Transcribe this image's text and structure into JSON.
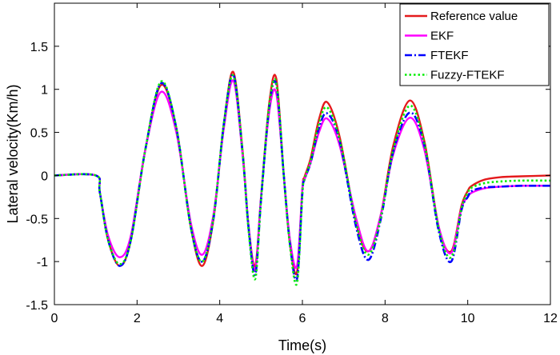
{
  "chart_data": {
    "type": "line",
    "title": "",
    "xlabel": "Time(s)",
    "ylabel": "Lateral velocity(Km/h)",
    "xlim": [
      0,
      12
    ],
    "ylim": [
      -1.5,
      2
    ],
    "xticks": [
      0,
      2,
      4,
      6,
      8,
      10,
      12
    ],
    "yticks": [
      -1.5,
      -1,
      -0.5,
      0,
      0.5,
      1,
      1.5
    ],
    "xtick_labels": [
      "0",
      "2",
      "4",
      "6",
      "8",
      "10",
      "12"
    ],
    "ytick_labels": [
      "-1.5",
      "-1",
      "-0.5",
      "0",
      "0.5",
      "1",
      "1.5"
    ],
    "grid": false,
    "legend_position": "top-right",
    "series": [
      {
        "name": "Reference value",
        "color": "#e41a1c",
        "style": "solid",
        "x": [
          0,
          1.0,
          1.1,
          1.3,
          1.58,
          1.85,
          2.2,
          2.58,
          2.95,
          3.3,
          3.58,
          3.85,
          4.1,
          4.33,
          4.55,
          4.7,
          4.86,
          5.0,
          5.2,
          5.37,
          5.55,
          5.7,
          5.87,
          6.0,
          6.05,
          6.2,
          6.4,
          6.6,
          6.9,
          7.3,
          7.6,
          7.9,
          8.2,
          8.6,
          8.95,
          9.3,
          9.6,
          9.85,
          10.0,
          10.1,
          10.4,
          10.8,
          11.3,
          12.0
        ],
        "y": [
          0,
          0,
          -0.2,
          -0.75,
          -1.05,
          -0.75,
          0.3,
          1.05,
          0.55,
          -0.6,
          -1.05,
          -0.5,
          0.6,
          1.2,
          0.3,
          -0.6,
          -1.05,
          -0.25,
          0.85,
          1.12,
          0.0,
          -0.8,
          -1.12,
          -0.15,
          -0.02,
          0.2,
          0.65,
          0.85,
          0.45,
          -0.55,
          -0.88,
          -0.45,
          0.35,
          0.87,
          0.4,
          -0.6,
          -0.88,
          -0.35,
          -0.18,
          -0.12,
          -0.05,
          -0.02,
          -0.01,
          0.0
        ]
      },
      {
        "name": "EKF",
        "color": "#ff00ff",
        "style": "solid",
        "x": [
          0,
          1.0,
          1.1,
          1.3,
          1.58,
          1.85,
          2.2,
          2.58,
          2.95,
          3.3,
          3.58,
          3.85,
          4.1,
          4.33,
          4.55,
          4.7,
          4.86,
          5.0,
          5.2,
          5.37,
          5.55,
          5.7,
          5.87,
          6.0,
          6.05,
          6.2,
          6.4,
          6.6,
          6.9,
          7.3,
          7.6,
          7.9,
          8.2,
          8.6,
          8.95,
          9.3,
          9.6,
          9.85,
          10.0,
          10.1,
          10.4,
          10.8,
          11.3,
          12.0
        ],
        "y": [
          0,
          0,
          -0.2,
          -0.7,
          -0.95,
          -0.7,
          0.3,
          0.97,
          0.5,
          -0.55,
          -0.92,
          -0.45,
          0.55,
          1.1,
          0.25,
          -0.6,
          -1.1,
          -0.25,
          0.75,
          0.95,
          0.0,
          -0.75,
          -1.05,
          -0.15,
          -0.05,
          0.15,
          0.5,
          0.66,
          0.35,
          -0.5,
          -0.88,
          -0.45,
          0.25,
          0.67,
          0.3,
          -0.6,
          -0.9,
          -0.38,
          -0.25,
          -0.2,
          -0.15,
          -0.13,
          -0.12,
          -0.12
        ]
      },
      {
        "name": "FTEKF",
        "color": "#0000ff",
        "style": "dashdot",
        "x": [
          0,
          1.0,
          1.1,
          1.3,
          1.58,
          1.85,
          2.2,
          2.58,
          2.95,
          3.3,
          3.58,
          3.85,
          4.1,
          4.33,
          4.55,
          4.7,
          4.86,
          5.0,
          5.2,
          5.37,
          5.55,
          5.7,
          5.87,
          6.0,
          6.05,
          6.2,
          6.4,
          6.6,
          6.9,
          7.3,
          7.6,
          7.9,
          8.2,
          8.6,
          8.95,
          9.3,
          9.6,
          9.85,
          10.0,
          10.1,
          10.4,
          10.8,
          11.3,
          12.0
        ],
        "y": [
          0,
          0,
          -0.2,
          -0.75,
          -1.05,
          -0.75,
          0.3,
          1.07,
          0.55,
          -0.6,
          -1.0,
          -0.5,
          0.6,
          1.17,
          0.28,
          -0.62,
          -1.15,
          -0.28,
          0.8,
          1.05,
          0.0,
          -0.8,
          -1.2,
          -0.2,
          -0.05,
          0.15,
          0.55,
          0.72,
          0.4,
          -0.6,
          -0.98,
          -0.5,
          0.28,
          0.73,
          0.35,
          -0.65,
          -1.0,
          -0.4,
          -0.25,
          -0.18,
          -0.14,
          -0.13,
          -0.12,
          -0.12
        ]
      },
      {
        "name": "Fuzzy-FTEKF",
        "color": "#00ee00",
        "style": "dotted",
        "x": [
          0,
          1.0,
          1.1,
          1.3,
          1.58,
          1.85,
          2.2,
          2.58,
          2.95,
          3.3,
          3.58,
          3.85,
          4.1,
          4.33,
          4.55,
          4.7,
          4.86,
          5.0,
          5.2,
          5.37,
          5.55,
          5.7,
          5.87,
          6.0,
          6.05,
          6.2,
          6.4,
          6.6,
          6.9,
          7.3,
          7.6,
          7.9,
          8.2,
          8.6,
          8.95,
          9.3,
          9.6,
          9.85,
          10.0,
          10.1,
          10.4,
          10.8,
          11.3,
          12.0
        ],
        "y": [
          0,
          0,
          -0.2,
          -0.75,
          -1.03,
          -0.75,
          0.3,
          1.09,
          0.55,
          -0.6,
          -1.0,
          -0.48,
          0.6,
          1.16,
          0.28,
          -0.65,
          -1.2,
          -0.28,
          0.82,
          1.07,
          0.0,
          -0.82,
          -1.25,
          -0.2,
          -0.04,
          0.17,
          0.6,
          0.79,
          0.42,
          -0.55,
          -0.92,
          -0.48,
          0.3,
          0.81,
          0.37,
          -0.62,
          -0.95,
          -0.38,
          -0.2,
          -0.14,
          -0.09,
          -0.07,
          -0.06,
          -0.06
        ]
      }
    ]
  }
}
